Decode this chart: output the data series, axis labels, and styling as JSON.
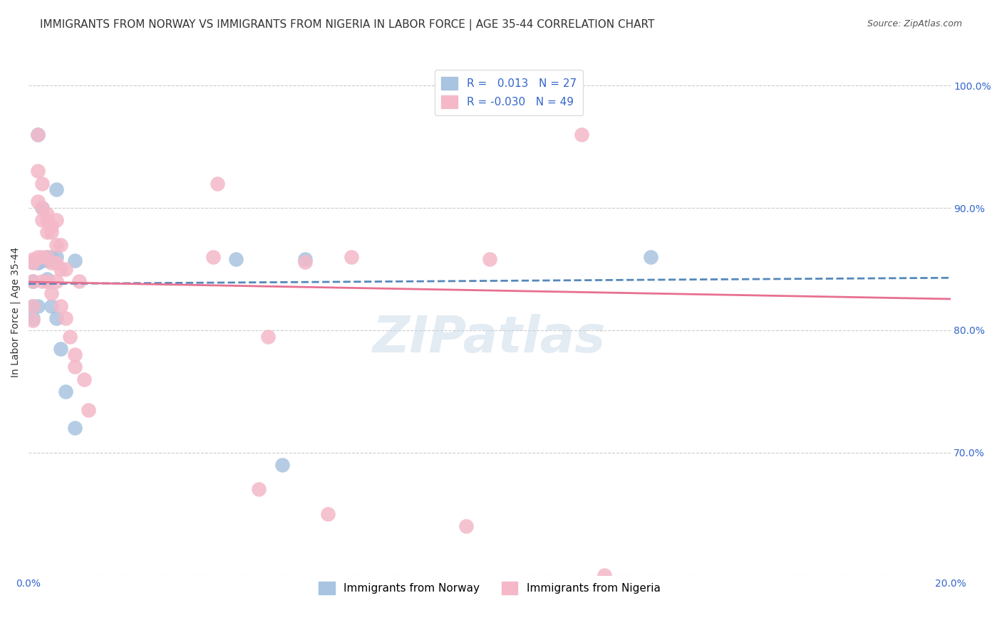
{
  "title": "IMMIGRANTS FROM NORWAY VS IMMIGRANTS FROM NIGERIA IN LABOR FORCE | AGE 35-44 CORRELATION CHART",
  "source": "Source: ZipAtlas.com",
  "xlabel": "",
  "ylabel": "In Labor Force | Age 35-44",
  "xlim": [
    0.0,
    0.2
  ],
  "ylim": [
    0.6,
    1.03
  ],
  "yticks": [
    0.7,
    0.8,
    0.9,
    1.0
  ],
  "ytick_labels": [
    "70.0%",
    "80.0%",
    "90.0%",
    "100.0%"
  ],
  "xticks": [
    0.0,
    0.05,
    0.1,
    0.15,
    0.2
  ],
  "xtick_labels": [
    "0.0%",
    "",
    "",
    "",
    "20.0%"
  ],
  "norway_R": 0.013,
  "norway_N": 27,
  "nigeria_R": -0.03,
  "nigeria_N": 49,
  "norway_color": "#a8c4e0",
  "nigeria_color": "#f4b8c8",
  "norway_line_color": "#5588bb",
  "nigeria_line_color": "#e87090",
  "norway_x": [
    0.001,
    0.001,
    0.001,
    0.001,
    0.002,
    0.002,
    0.002,
    0.002,
    0.003,
    0.003,
    0.003,
    0.004,
    0.004,
    0.004,
    0.005,
    0.005,
    0.006,
    0.006,
    0.006,
    0.007,
    0.008,
    0.01,
    0.01,
    0.045,
    0.055,
    0.06,
    0.135
  ],
  "norway_y": [
    0.856,
    0.84,
    0.82,
    0.81,
    0.96,
    0.855,
    0.855,
    0.82,
    0.9,
    0.858,
    0.857,
    0.86,
    0.857,
    0.842,
    0.86,
    0.82,
    0.915,
    0.86,
    0.81,
    0.785,
    0.75,
    0.857,
    0.72,
    0.858,
    0.69,
    0.858,
    0.86
  ],
  "nigeria_x": [
    0.001,
    0.001,
    0.001,
    0.001,
    0.001,
    0.002,
    0.002,
    0.002,
    0.002,
    0.003,
    0.003,
    0.003,
    0.003,
    0.003,
    0.004,
    0.004,
    0.004,
    0.004,
    0.004,
    0.005,
    0.005,
    0.005,
    0.005,
    0.006,
    0.006,
    0.006,
    0.006,
    0.007,
    0.007,
    0.007,
    0.008,
    0.008,
    0.009,
    0.01,
    0.01,
    0.011,
    0.012,
    0.013,
    0.04,
    0.041,
    0.05,
    0.052,
    0.06,
    0.065,
    0.07,
    0.095,
    0.1,
    0.12,
    0.125
  ],
  "nigeria_y": [
    0.858,
    0.855,
    0.84,
    0.82,
    0.808,
    0.96,
    0.93,
    0.905,
    0.86,
    0.92,
    0.9,
    0.89,
    0.86,
    0.84,
    0.895,
    0.89,
    0.88,
    0.86,
    0.84,
    0.885,
    0.88,
    0.855,
    0.83,
    0.89,
    0.87,
    0.855,
    0.84,
    0.87,
    0.85,
    0.82,
    0.85,
    0.81,
    0.795,
    0.78,
    0.77,
    0.84,
    0.76,
    0.735,
    0.86,
    0.92,
    0.67,
    0.795,
    0.856,
    0.65,
    0.86,
    0.64,
    0.858,
    0.96,
    0.6
  ],
  "watermark": "ZIPatlas",
  "watermark_color": "#c8d8e8",
  "background_color": "#ffffff",
  "grid_color": "#cccccc",
  "title_fontsize": 11,
  "axis_label_fontsize": 10,
  "tick_fontsize": 10,
  "legend_fontsize": 11
}
